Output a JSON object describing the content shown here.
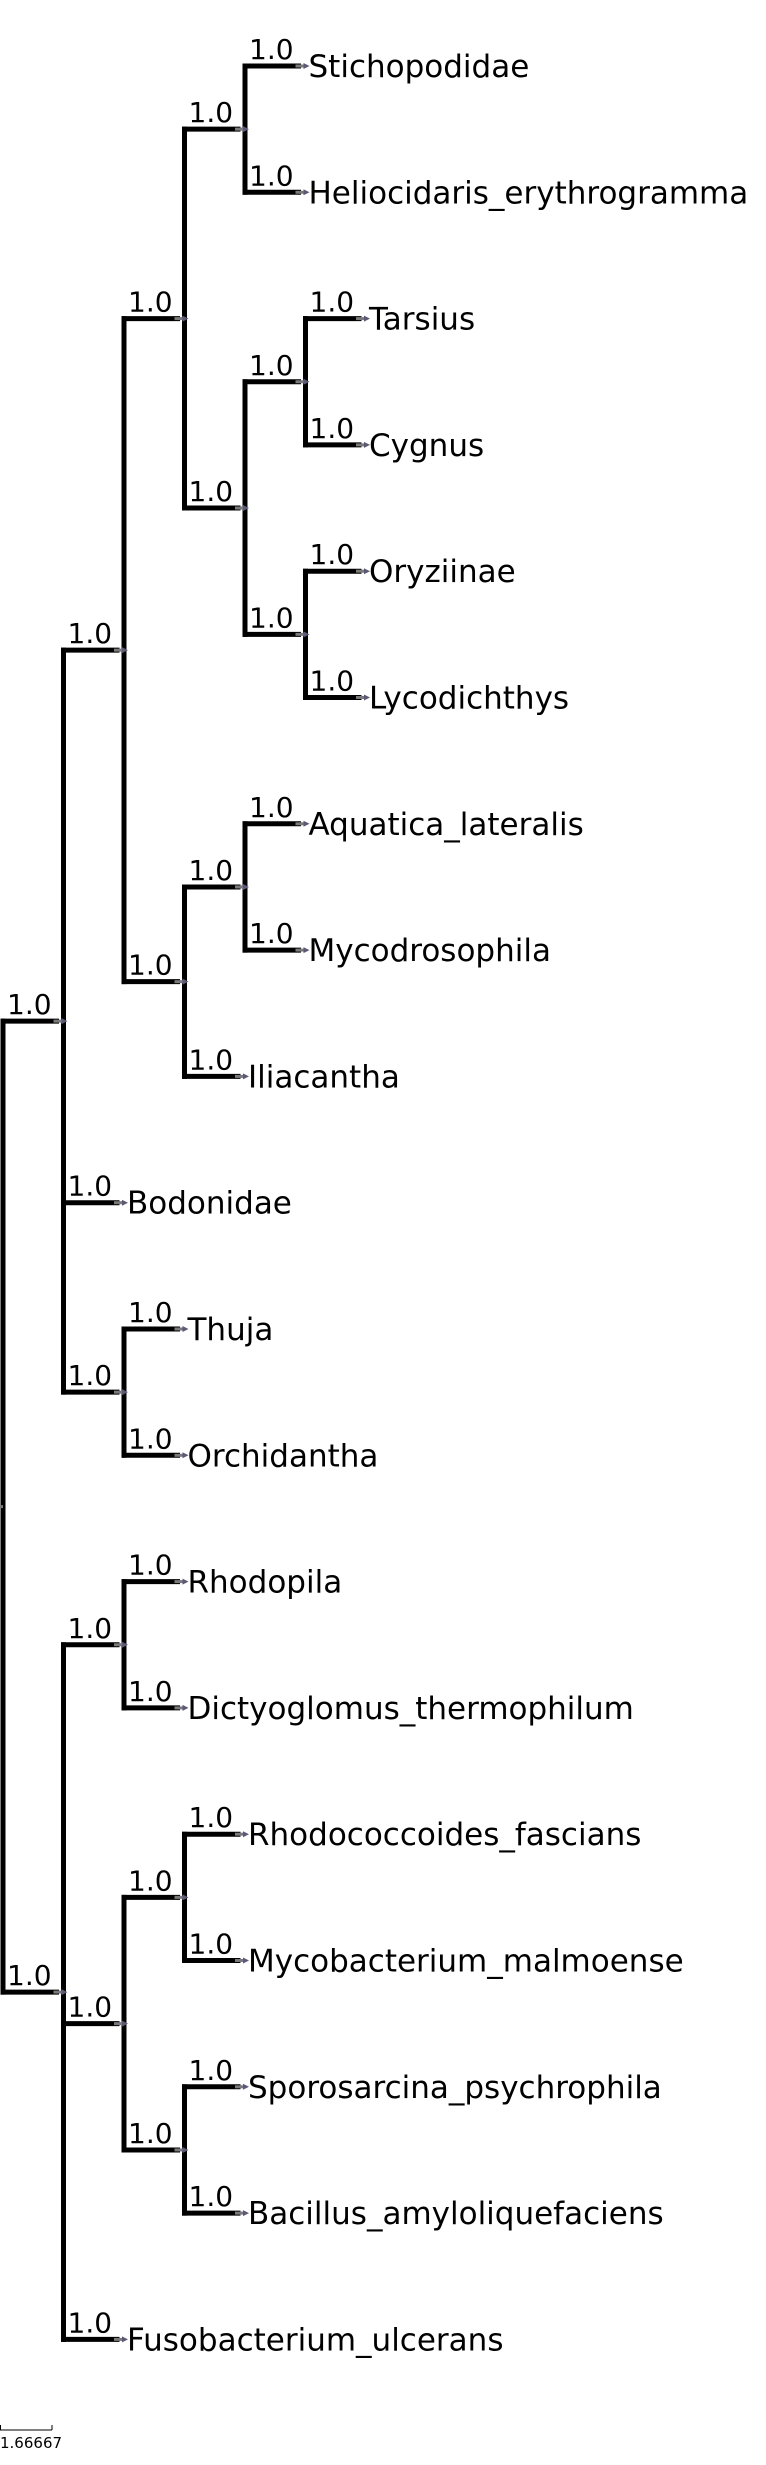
{
  "tree": {
    "name": "",
    "support": "",
    "children": [
      {
        "support": "1.0",
        "children": [
          {
            "support": "1.0",
            "children": [
              {
                "support": "1.0",
                "children": [
                  {
                    "support": "1.0",
                    "children": [
                      {
                        "name": "Stichopodidae",
                        "support": "1.0"
                      },
                      {
                        "name": "Heliocidaris_erythrogramma",
                        "support": "1.0"
                      }
                    ]
                  },
                  {
                    "support": "1.0",
                    "children": [
                      {
                        "support": "1.0",
                        "children": [
                          {
                            "name": "Tarsius",
                            "support": "1.0"
                          },
                          {
                            "name": "Cygnus",
                            "support": "1.0"
                          }
                        ]
                      },
                      {
                        "support": "1.0",
                        "children": [
                          {
                            "name": "Oryziinae",
                            "support": "1.0"
                          },
                          {
                            "name": "Lycodichthys",
                            "support": "1.0"
                          }
                        ]
                      }
                    ]
                  }
                ]
              },
              {
                "support": "1.0",
                "children": [
                  {
                    "support": "1.0",
                    "children": [
                      {
                        "name": "Aquatica_lateralis",
                        "support": "1.0"
                      },
                      {
                        "name": "Mycodrosophila",
                        "support": "1.0"
                      }
                    ]
                  },
                  {
                    "name": "Iliacantha",
                    "support": "1.0"
                  }
                ]
              }
            ]
          },
          {
            "name": "Bodonidae",
            "support": "1.0"
          },
          {
            "support": "1.0",
            "children": [
              {
                "name": "Thuja",
                "support": "1.0"
              },
              {
                "name": "Orchidantha",
                "support": "1.0"
              }
            ]
          }
        ]
      },
      {
        "support": "1.0",
        "children": [
          {
            "support": "1.0",
            "children": [
              {
                "name": "Rhodopila",
                "support": "1.0"
              },
              {
                "name": "Dictyoglomus_thermophilum",
                "support": "1.0"
              }
            ]
          },
          {
            "support": "1.0",
            "children": [
              {
                "support": "1.0",
                "children": [
                  {
                    "name": "Rhodococcoides_fascians",
                    "support": "1.0"
                  },
                  {
                    "name": "Mycobacterium_malmoense",
                    "support": "1.0"
                  }
                ]
              },
              {
                "support": "1.0",
                "children": [
                  {
                    "name": "Sporosarcina_psychrophila",
                    "support": "1.0"
                  },
                  {
                    "name": "Bacillus_amyloliquefaciens",
                    "support": "1.0"
                  }
                ]
              }
            ]
          },
          {
            "name": "Fusobacterium_ulcerans",
            "support": "1.0"
          }
        ]
      }
    ]
  },
  "scale_bar": {
    "label": "1.66667"
  }
}
